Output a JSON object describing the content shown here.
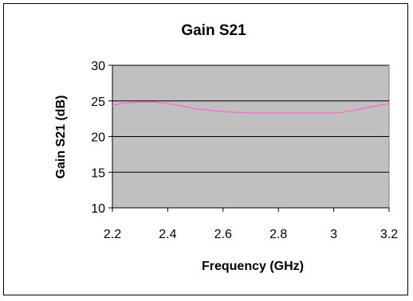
{
  "chart_data": {
    "type": "line",
    "title": "Gain S21",
    "xlabel": "Frequency (GHz)",
    "ylabel": "Gain S21 (dB)",
    "xlim": [
      2.2,
      3.2
    ],
    "ylim": [
      10,
      30
    ],
    "x_ticks": [
      "2.2",
      "2.4",
      "2.6",
      "2.8",
      "3",
      "3.2"
    ],
    "y_ticks": [
      "30",
      "25",
      "20",
      "15",
      "10"
    ],
    "grid": "horizontal",
    "legend": "none",
    "plot_background": "#c0c0c0",
    "series": [
      {
        "color": "#ff66cc",
        "x": [
          2.2,
          2.25,
          2.3,
          2.35,
          2.4,
          2.45,
          2.5,
          2.55,
          2.6,
          2.65,
          2.7,
          2.75,
          2.8,
          2.85,
          2.9,
          2.95,
          3.0,
          3.05,
          3.1,
          3.15,
          3.2
        ],
        "y": [
          24.4,
          24.7,
          24.85,
          24.85,
          24.6,
          24.3,
          23.9,
          23.7,
          23.5,
          23.4,
          23.3,
          23.3,
          23.3,
          23.3,
          23.3,
          23.3,
          23.3,
          23.5,
          23.9,
          24.3,
          24.6
        ]
      }
    ]
  }
}
